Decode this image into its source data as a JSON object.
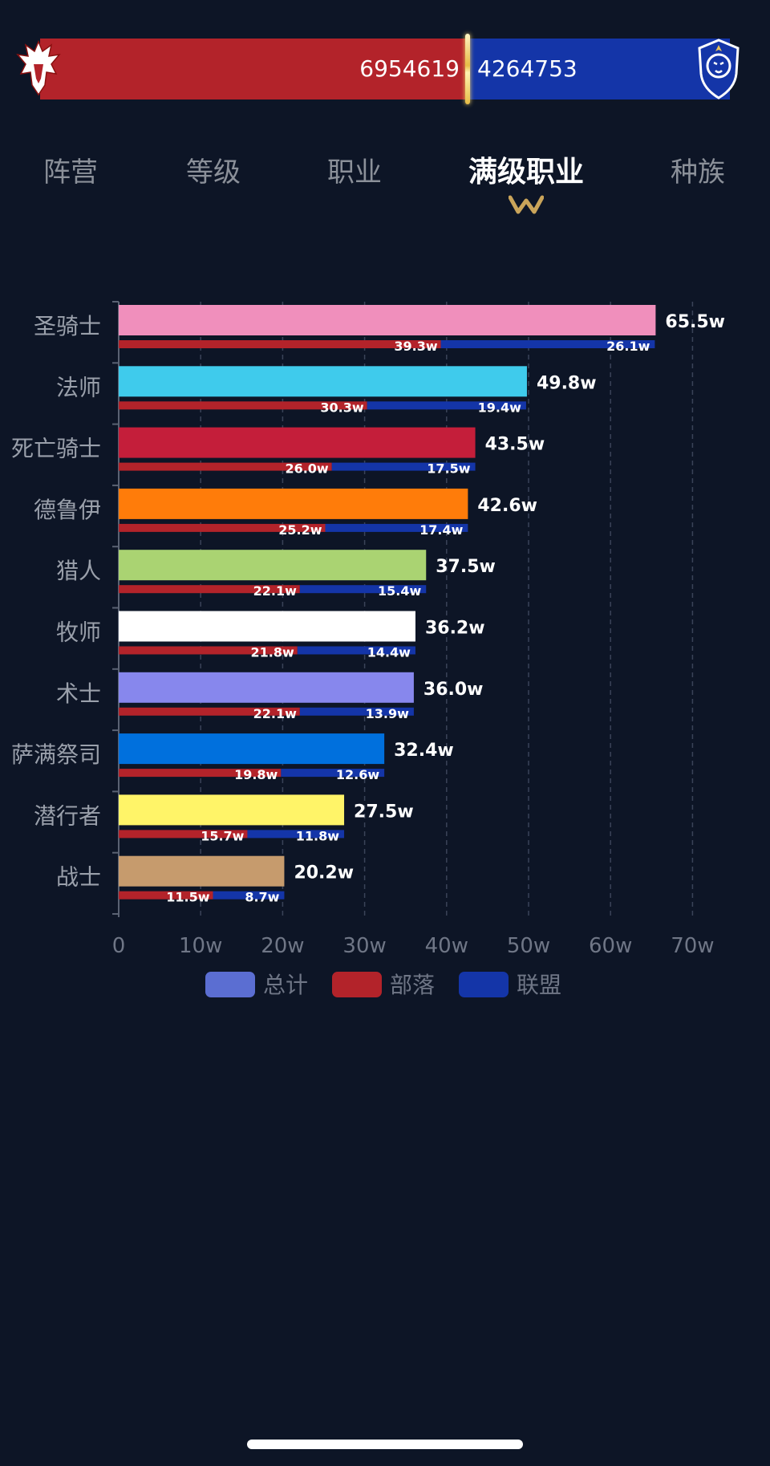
{
  "faction_bar": {
    "horde_total": 6954619,
    "alliance_total": 4264753,
    "horde_label": "6954619",
    "alliance_label": "4264753",
    "horde_emblem": "horde-emblem-icon",
    "alliance_emblem": "alliance-lion-emblem-icon",
    "horde_color": "#b3232a",
    "alliance_color": "#1435a8"
  },
  "tabs": [
    {
      "label": "阵营",
      "active": false
    },
    {
      "label": "等级",
      "active": false
    },
    {
      "label": "职业",
      "active": false
    },
    {
      "label": "满级职业",
      "active": true
    },
    {
      "label": "种族",
      "active": false
    }
  ],
  "tab_indicator_icon": "w-chevron-icon",
  "legend": [
    {
      "label": "总计",
      "color": "#5b6ed2"
    },
    {
      "label": "部落",
      "color": "#b3232a"
    },
    {
      "label": "联盟",
      "color": "#1435a8"
    }
  ],
  "chart_data": {
    "type": "bar",
    "orientation": "horizontal",
    "categories": [
      "圣骑士",
      "法师",
      "死亡骑士",
      "德鲁伊",
      "猎人",
      "牧师",
      "术士",
      "萨满祭司",
      "潜行者",
      "战士"
    ],
    "category_colors": [
      "#f08fbc",
      "#3fcbec",
      "#c41e3a",
      "#ff7c0a",
      "#aad372",
      "#ffffff",
      "#8787ed",
      "#0070dd",
      "#fff468",
      "#c69b6d"
    ],
    "series": [
      {
        "name": "总计",
        "values": [
          65.5,
          49.8,
          43.5,
          42.6,
          37.5,
          36.2,
          36.0,
          32.4,
          27.5,
          20.2
        ],
        "labels": [
          "65.5w",
          "49.8w",
          "43.5w",
          "42.6w",
          "37.5w",
          "36.2w",
          "36.0w",
          "32.4w",
          "27.5w",
          "20.2w"
        ]
      },
      {
        "name": "部落",
        "values": [
          39.3,
          30.3,
          26.0,
          25.2,
          22.1,
          21.8,
          22.1,
          19.8,
          15.7,
          11.5
        ],
        "labels": [
          "39.3w",
          "30.3w",
          "26.0w",
          "25.2w",
          "22.1w",
          "21.8w",
          "22.1w",
          "19.8w",
          "15.7w",
          "11.5w"
        ]
      },
      {
        "name": "联盟",
        "values": [
          26.1,
          19.4,
          17.5,
          17.4,
          15.4,
          14.4,
          13.9,
          12.6,
          11.8,
          8.7
        ],
        "labels": [
          "26.1w",
          "19.4w",
          "17.5w",
          "17.4w",
          "15.4w",
          "14.4w",
          "13.9w",
          "12.6w",
          "11.8w",
          "8.7w"
        ]
      }
    ],
    "xlim": [
      0,
      70
    ],
    "x_ticks": [
      0,
      10,
      20,
      30,
      40,
      50,
      60,
      70
    ],
    "x_tick_labels": [
      "0",
      "10w",
      "20w",
      "30w",
      "40w",
      "50w",
      "60w",
      "70w"
    ],
    "grid": "vertical dashed",
    "legend_position": "bottom",
    "horde_color": "#b3232a",
    "alliance_color": "#1435a8"
  }
}
